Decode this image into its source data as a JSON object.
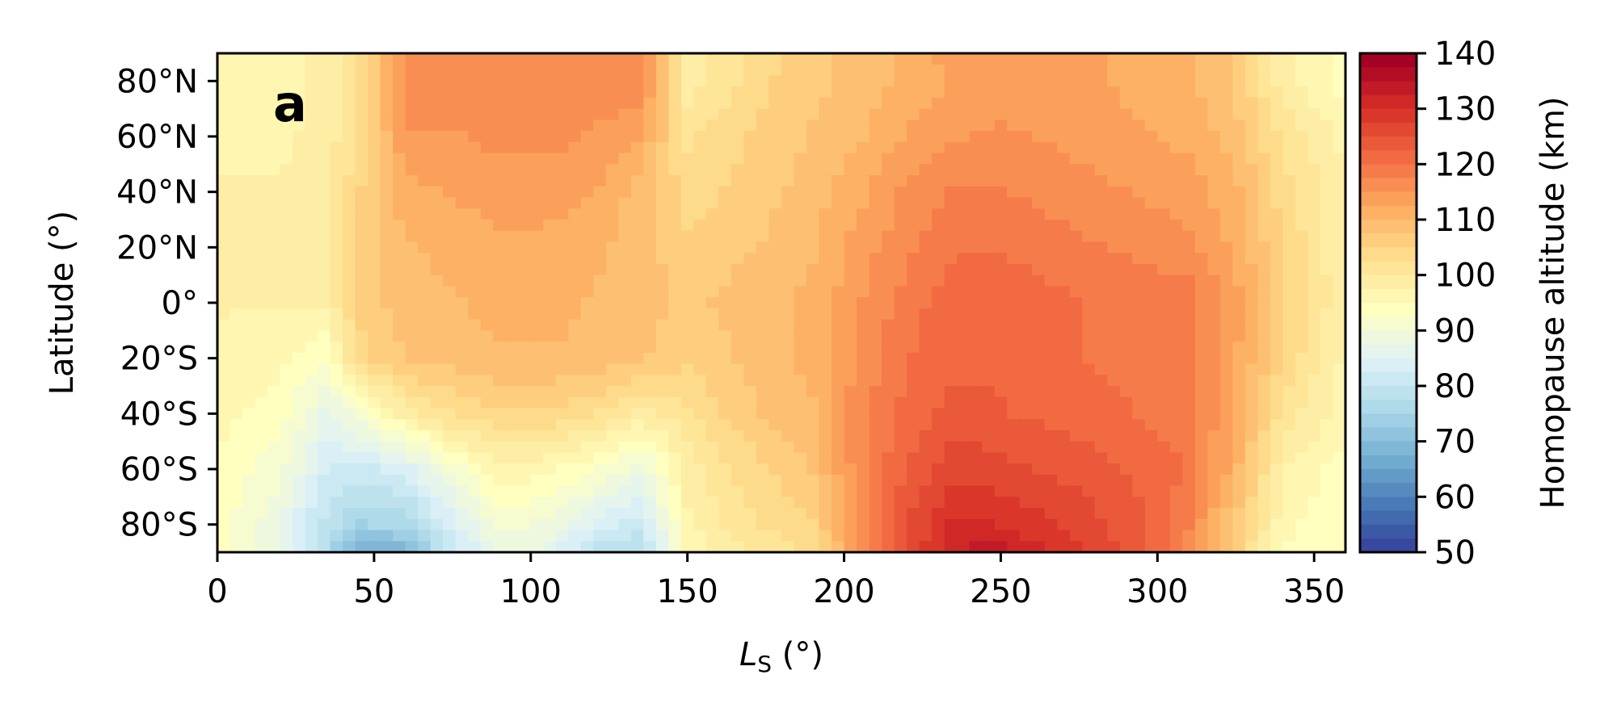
{
  "chart_data": {
    "type": "heatmap",
    "panel_label": "a",
    "xlabel": "L",
    "xlabel_sub": "S",
    "xlabel_unit": " (°)",
    "ylabel": "Latitude (°)",
    "xlim": [
      0,
      360
    ],
    "ylim": [
      -90,
      90
    ],
    "x_ticks": [
      0,
      50,
      100,
      150,
      200,
      250,
      300,
      350
    ],
    "x_tick_labels": [
      "0",
      "50",
      "100",
      "150",
      "200",
      "250",
      "300",
      "350"
    ],
    "y_ticks": [
      80,
      60,
      40,
      20,
      0,
      -20,
      -40,
      -60,
      -80
    ],
    "y_tick_labels": [
      "80°N",
      "60°N",
      "40°N",
      "20°N",
      "0°",
      "20°S",
      "40°S",
      "60°S",
      "80°S"
    ],
    "colorbar": {
      "label": "Homopause altitude (km)",
      "range": [
        50,
        140
      ],
      "ticks": [
        50,
        60,
        70,
        80,
        90,
        100,
        110,
        120,
        130,
        140
      ],
      "tick_labels": [
        "50",
        "60",
        "70",
        "80",
        "90",
        "100",
        "110",
        "120",
        "130",
        "140"
      ],
      "colormap": "RdYlBu_r",
      "stops": [
        "#313695",
        "#4575b4",
        "#74add1",
        "#abd9e9",
        "#e0f3f8",
        "#ffffbf",
        "#fee090",
        "#fdae61",
        "#f46d43",
        "#d73027",
        "#a50026"
      ]
    },
    "ls_samples": [
      0,
      20,
      35,
      45,
      60,
      75,
      90,
      105,
      120,
      135,
      150,
      160,
      175,
      190,
      205,
      220,
      235,
      250,
      265,
      280,
      295,
      310,
      325,
      340,
      360
    ],
    "lat_samples": [
      90,
      80,
      60,
      40,
      20,
      0,
      -20,
      -40,
      -60,
      -80,
      -90
    ],
    "values": [
      [
        97,
        97,
        100,
        103,
        118,
        118,
        118,
        118,
        118,
        118,
        100,
        102,
        105,
        108,
        110,
        112,
        115,
        115,
        115,
        114,
        113,
        112,
        108,
        100,
        95
      ],
      [
        97,
        97,
        100,
        103,
        118,
        118,
        118,
        118,
        118,
        118,
        100,
        102,
        106,
        108,
        110,
        112,
        114,
        114,
        114,
        114,
        113,
        112,
        108,
        100,
        95
      ],
      [
        98,
        98,
        100,
        104,
        116,
        116,
        117,
        117,
        116,
        114,
        103,
        105,
        107,
        109,
        111,
        114,
        116,
        117,
        116,
        115,
        114,
        113,
        110,
        103,
        98
      ],
      [
        99,
        99,
        100,
        106,
        113,
        114,
        115,
        115,
        114,
        110,
        105,
        106,
        108,
        110,
        113,
        117,
        119,
        119,
        118,
        117,
        116,
        115,
        112,
        105,
        99
      ],
      [
        99,
        99,
        100,
        107,
        111,
        112,
        113,
        113,
        112,
        110,
        107,
        108,
        109,
        111,
        115,
        118,
        121,
        121,
        120,
        119,
        118,
        117,
        113,
        106,
        99
      ],
      [
        99,
        99,
        99,
        107,
        110,
        111,
        112,
        112,
        111,
        110,
        108,
        109,
        110,
        112,
        116,
        120,
        123,
        123,
        122,
        121,
        121,
        120,
        115,
        107,
        99
      ],
      [
        98,
        97,
        94,
        105,
        109,
        110,
        111,
        111,
        111,
        109,
        107,
        108,
        110,
        112,
        117,
        121,
        123,
        123,
        122,
        121,
        121,
        120,
        114,
        106,
        98
      ],
      [
        97,
        95,
        88,
        92,
        100,
        104,
        106,
        106,
        104,
        100,
        103,
        106,
        109,
        111,
        118,
        122,
        125,
        124,
        123,
        122,
        121,
        120,
        113,
        103,
        97
      ],
      [
        96,
        92,
        84,
        83,
        85,
        92,
        98,
        97,
        94,
        90,
        100,
        103,
        106,
        109,
        118,
        124,
        128,
        127,
        126,
        125,
        123,
        121,
        112,
        99,
        95
      ],
      [
        95,
        89,
        80,
        76,
        77,
        85,
        92,
        91,
        86,
        82,
        98,
        101,
        104,
        106,
        117,
        126,
        132,
        131,
        129,
        127,
        124,
        119,
        108,
        97,
        94
      ],
      [
        95,
        88,
        78,
        68,
        70,
        82,
        90,
        88,
        80,
        78,
        96,
        99,
        102,
        104,
        116,
        126,
        134,
        135,
        131,
        128,
        124,
        118,
        107,
        96,
        94
      ]
    ]
  }
}
